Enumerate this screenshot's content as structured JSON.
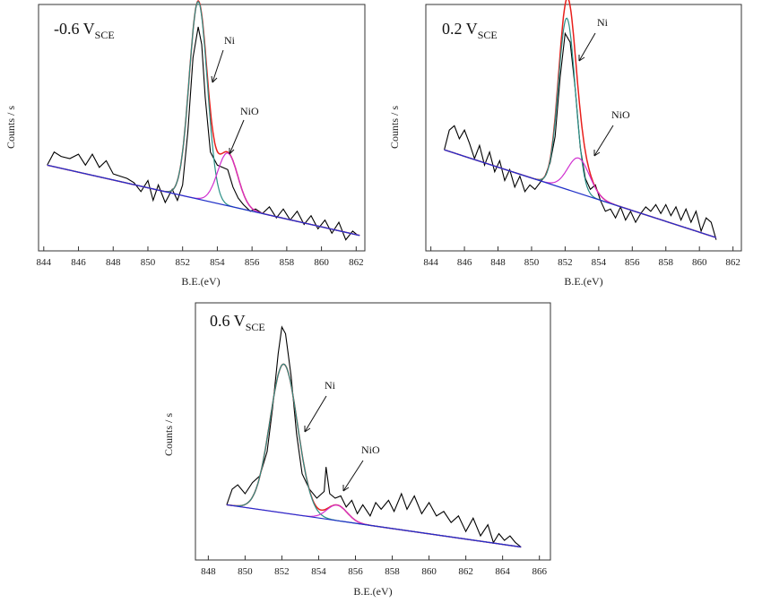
{
  "chart_data": [
    {
      "type": "line",
      "title": "-0.6 V",
      "title_sub": "SCE",
      "xlabel": "B.E.(eV)",
      "ylabel": "Counts / s",
      "xlim": [
        843.7,
        862.5
      ],
      "ylim": [
        0,
        1
      ],
      "xticks": [
        844,
        846,
        848,
        850,
        852,
        854,
        856,
        858,
        860,
        862
      ],
      "annotations": [
        "Ni",
        "NiO"
      ],
      "colors": {
        "raw": "#000000",
        "envelope": "#e8201c",
        "ni": "#2a8f86",
        "nio": "#d02fd0",
        "baseline": "#2030c8"
      },
      "baseline": [
        [
          844.2,
          0.37
        ],
        [
          862.2,
          0.05
        ]
      ],
      "peaks": {
        "ni": {
          "center": 852.9,
          "height": 0.9,
          "sigma": 0.52
        },
        "nio": {
          "center": 854.6,
          "height": 0.24,
          "sigma": 0.58
        }
      },
      "raw": [
        [
          844.2,
          0.37
        ],
        [
          844.6,
          0.43
        ],
        [
          845.0,
          0.41
        ],
        [
          845.5,
          0.4
        ],
        [
          846.0,
          0.42
        ],
        [
          846.4,
          0.37
        ],
        [
          846.8,
          0.42
        ],
        [
          847.2,
          0.36
        ],
        [
          847.6,
          0.39
        ],
        [
          848.0,
          0.33
        ],
        [
          848.4,
          0.32
        ],
        [
          848.8,
          0.31
        ],
        [
          849.2,
          0.29
        ],
        [
          849.6,
          0.25
        ],
        [
          850.0,
          0.3
        ],
        [
          850.3,
          0.21
        ],
        [
          850.6,
          0.28
        ],
        [
          851.0,
          0.2
        ],
        [
          851.4,
          0.26
        ],
        [
          851.7,
          0.21
        ],
        [
          852.0,
          0.28
        ],
        [
          852.3,
          0.52
        ],
        [
          852.6,
          0.86
        ],
        [
          852.9,
          1.0
        ],
        [
          853.1,
          0.92
        ],
        [
          853.3,
          0.68
        ],
        [
          853.6,
          0.43
        ],
        [
          854.0,
          0.37
        ],
        [
          854.3,
          0.36
        ],
        [
          854.6,
          0.35
        ],
        [
          854.9,
          0.27
        ],
        [
          855.2,
          0.22
        ],
        [
          855.5,
          0.19
        ],
        [
          855.9,
          0.16
        ],
        [
          856.2,
          0.17
        ],
        [
          856.6,
          0.15
        ],
        [
          857.0,
          0.18
        ],
        [
          857.4,
          0.13
        ],
        [
          857.8,
          0.17
        ],
        [
          858.2,
          0.12
        ],
        [
          858.6,
          0.16
        ],
        [
          859.0,
          0.1
        ],
        [
          859.4,
          0.14
        ],
        [
          859.8,
          0.08
        ],
        [
          860.2,
          0.12
        ],
        [
          860.6,
          0.06
        ],
        [
          861.0,
          0.11
        ],
        [
          861.4,
          0.03
        ],
        [
          861.8,
          0.07
        ],
        [
          862.1,
          0.05
        ]
      ]
    },
    {
      "type": "line",
      "title": "0.2 V",
      "title_sub": "SCE",
      "xlabel": "B.E.(eV)",
      "ylabel": "Counts / s",
      "xlim": [
        843.7,
        862.5
      ],
      "ylim": [
        0,
        1
      ],
      "xticks": [
        844,
        846,
        848,
        850,
        852,
        854,
        856,
        858,
        860,
        862
      ],
      "annotations": [
        "Ni",
        "NiO"
      ],
      "colors": {
        "raw": "#000000",
        "envelope": "#e8201c",
        "ni": "#2a8f86",
        "nio": "#d02fd0",
        "baseline": "#2030c8"
      },
      "baseline": [
        [
          844.8,
          0.44
        ],
        [
          861.0,
          0.04
        ]
      ],
      "peaks": {
        "ni": {
          "center": 852.1,
          "height": 0.78,
          "sigma": 0.5
        },
        "nio": {
          "center": 852.8,
          "height": 0.16,
          "sigma": 0.65
        }
      },
      "raw": [
        [
          844.8,
          0.44
        ],
        [
          845.1,
          0.53
        ],
        [
          845.4,
          0.55
        ],
        [
          845.7,
          0.49
        ],
        [
          846.0,
          0.53
        ],
        [
          846.3,
          0.47
        ],
        [
          846.6,
          0.4
        ],
        [
          846.9,
          0.46
        ],
        [
          847.2,
          0.37
        ],
        [
          847.5,
          0.43
        ],
        [
          847.8,
          0.34
        ],
        [
          848.1,
          0.39
        ],
        [
          848.4,
          0.3
        ],
        [
          848.7,
          0.35
        ],
        [
          849.0,
          0.27
        ],
        [
          849.3,
          0.32
        ],
        [
          849.6,
          0.25
        ],
        [
          849.9,
          0.28
        ],
        [
          850.2,
          0.26
        ],
        [
          850.5,
          0.29
        ],
        [
          850.8,
          0.32
        ],
        [
          851.1,
          0.38
        ],
        [
          851.4,
          0.5
        ],
        [
          851.7,
          0.77
        ],
        [
          852.0,
          0.97
        ],
        [
          852.3,
          0.93
        ],
        [
          852.6,
          0.72
        ],
        [
          852.9,
          0.45
        ],
        [
          853.2,
          0.31
        ],
        [
          853.5,
          0.26
        ],
        [
          853.8,
          0.28
        ],
        [
          854.1,
          0.21
        ],
        [
          854.4,
          0.16
        ],
        [
          854.7,
          0.17
        ],
        [
          855.0,
          0.13
        ],
        [
          855.3,
          0.18
        ],
        [
          855.6,
          0.12
        ],
        [
          855.9,
          0.16
        ],
        [
          856.2,
          0.11
        ],
        [
          856.5,
          0.15
        ],
        [
          856.8,
          0.18
        ],
        [
          857.1,
          0.16
        ],
        [
          857.4,
          0.19
        ],
        [
          857.7,
          0.15
        ],
        [
          858.0,
          0.19
        ],
        [
          858.3,
          0.14
        ],
        [
          858.6,
          0.18
        ],
        [
          858.9,
          0.12
        ],
        [
          859.2,
          0.17
        ],
        [
          859.5,
          0.11
        ],
        [
          859.8,
          0.16
        ],
        [
          860.1,
          0.07
        ],
        [
          860.4,
          0.13
        ],
        [
          860.7,
          0.11
        ],
        [
          861.0,
          0.03
        ]
      ]
    },
    {
      "type": "line",
      "title": "0.6 V",
      "title_sub": "SCE",
      "xlabel": "B.E.(eV)",
      "ylabel": "Counts / s",
      "xlim": [
        847.3,
        866.6
      ],
      "ylim": [
        0,
        1
      ],
      "xticks": [
        848,
        850,
        852,
        854,
        856,
        858,
        860,
        862,
        864,
        866
      ],
      "annotations": [
        "Ni",
        "NiO"
      ],
      "colors": {
        "raw": "#000000",
        "envelope": "#e8201c",
        "ni": "#2a8f86",
        "nio": "#d02fd0",
        "baseline": "#2030c8"
      },
      "baseline": [
        [
          849.0,
          0.2
        ],
        [
          865.0,
          0.01
        ]
      ],
      "peaks": {
        "ni": {
          "center": 852.1,
          "height": 0.67,
          "sigma": 0.75
        },
        "nio": {
          "center": 855.0,
          "height": 0.07,
          "sigma": 0.55
        }
      },
      "raw": [
        [
          849.0,
          0.2
        ],
        [
          849.3,
          0.27
        ],
        [
          849.6,
          0.29
        ],
        [
          850.0,
          0.25
        ],
        [
          850.4,
          0.3
        ],
        [
          850.8,
          0.33
        ],
        [
          851.2,
          0.44
        ],
        [
          851.5,
          0.64
        ],
        [
          851.8,
          0.88
        ],
        [
          852.0,
          1.0
        ],
        [
          852.2,
          0.97
        ],
        [
          852.5,
          0.78
        ],
        [
          852.8,
          0.52
        ],
        [
          853.1,
          0.34
        ],
        [
          853.5,
          0.27
        ],
        [
          853.9,
          0.23
        ],
        [
          854.3,
          0.26
        ],
        [
          854.4,
          0.37
        ],
        [
          854.6,
          0.25
        ],
        [
          854.9,
          0.23
        ],
        [
          855.2,
          0.24
        ],
        [
          855.5,
          0.19
        ],
        [
          855.8,
          0.22
        ],
        [
          856.1,
          0.16
        ],
        [
          856.4,
          0.2
        ],
        [
          856.8,
          0.15
        ],
        [
          857.1,
          0.21
        ],
        [
          857.4,
          0.18
        ],
        [
          857.8,
          0.22
        ],
        [
          858.1,
          0.17
        ],
        [
          858.5,
          0.25
        ],
        [
          858.8,
          0.18
        ],
        [
          859.2,
          0.24
        ],
        [
          859.6,
          0.16
        ],
        [
          860.0,
          0.21
        ],
        [
          860.4,
          0.15
        ],
        [
          860.8,
          0.17
        ],
        [
          861.2,
          0.12
        ],
        [
          861.6,
          0.15
        ],
        [
          862.0,
          0.08
        ],
        [
          862.4,
          0.14
        ],
        [
          862.8,
          0.06
        ],
        [
          863.2,
          0.11
        ],
        [
          863.5,
          0.03
        ],
        [
          863.8,
          0.07
        ],
        [
          864.1,
          0.04
        ],
        [
          864.4,
          0.06
        ],
        [
          864.7,
          0.03
        ],
        [
          865.0,
          0.01
        ]
      ]
    }
  ]
}
